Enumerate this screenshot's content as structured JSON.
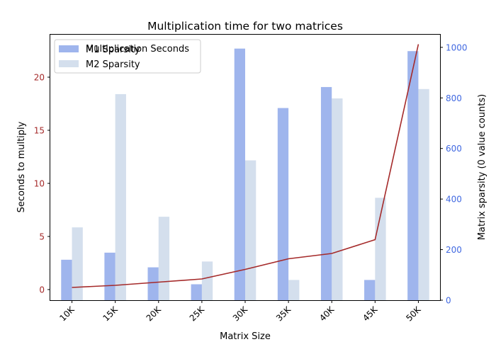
{
  "chart_data": {
    "type": "bar",
    "title": "Multiplication time for two matrices",
    "xlabel": "Matrix Size",
    "ylabel_left": "Seconds to multiply",
    "ylabel_right": "Matrix sparsity (0 value counts)",
    "categories": [
      "10K",
      "15K",
      "20K",
      "25K",
      "30K",
      "35K",
      "40K",
      "45K",
      "50K"
    ],
    "left_axis": {
      "ylim": [
        -1,
        24
      ],
      "ticks": [
        0,
        5,
        10,
        15,
        20
      ],
      "tick_color": "#a52a2a"
    },
    "right_axis": {
      "ylim": [
        0,
        1050
      ],
      "ticks": [
        0,
        200,
        400,
        600,
        800,
        1000
      ],
      "tick_color": "#4169e1"
    },
    "series": [
      {
        "name": "M1 Sparsity",
        "kind": "bar",
        "axis": "right",
        "color": "#6b8de3",
        "opacity": 0.65,
        "values": [
          160,
          188,
          130,
          63,
          995,
          760,
          843,
          80,
          985
        ]
      },
      {
        "name": "M2 Sparsity",
        "kind": "bar",
        "axis": "right",
        "color": "#b0c4de",
        "opacity": 0.55,
        "values": [
          288,
          815,
          330,
          153,
          553,
          80,
          798,
          405,
          835
        ]
      },
      {
        "name": "Multiplication Seconds",
        "kind": "line",
        "axis": "left",
        "color": "#a52a2a",
        "values": [
          0.2,
          0.4,
          0.7,
          1.0,
          1.9,
          2.9,
          3.4,
          4.7,
          23.1
        ]
      }
    ],
    "legend": {
      "placement": "top-left",
      "entries": [
        "M1 Sparsity",
        "M2 Sparsity"
      ],
      "hidden_entry": "Multiplication Seconds"
    },
    "grid": false
  }
}
